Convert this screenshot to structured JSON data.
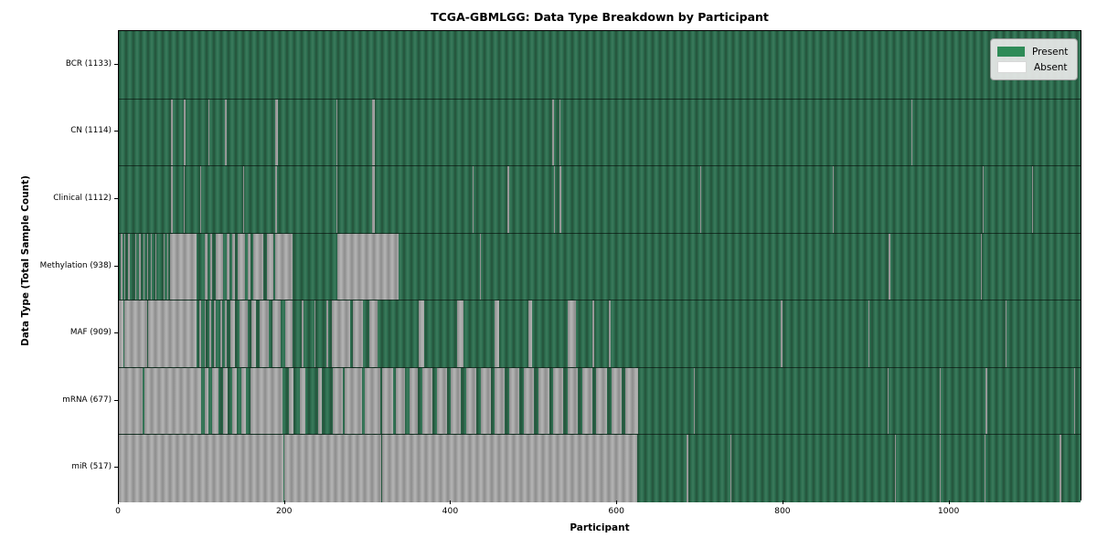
{
  "chart_data": {
    "type": "heatmap",
    "title": "TCGA-GBMLGG: Data Type Breakdown by Participant",
    "xlabel": "Participant",
    "ylabel": "Data Type (Total Sample Count)",
    "x_axis": {
      "min": 0,
      "max": 1160,
      "ticks": [
        0,
        200,
        400,
        600,
        800,
        1000
      ]
    },
    "legend": [
      {
        "label": "Present",
        "color": "#2e8b57"
      },
      {
        "label": "Absent",
        "color": "#ffffff"
      }
    ],
    "colors": {
      "present_base": "#2e7152",
      "present_dark": "#24523a",
      "present_light": "#3c7a5c",
      "absent_base": "#a7a7a7",
      "absent_dark": "#8d8d8d",
      "absent_light": "#b5b5b5"
    },
    "rows": [
      {
        "label": "BCR (1133)",
        "name": "BCR",
        "count": 1133,
        "absent_segments": []
      },
      {
        "label": "CN (1114)",
        "name": "CN",
        "count": 1114,
        "absent_segments": [
          [
            63,
            64.5
          ],
          [
            78,
            80
          ],
          [
            108,
            109
          ],
          [
            128,
            129.5
          ],
          [
            188,
            191
          ],
          [
            262,
            263.5
          ],
          [
            305,
            308
          ],
          [
            522,
            523.5
          ],
          [
            530,
            531.5
          ],
          [
            954,
            955.5
          ]
        ]
      },
      {
        "label": "Clinical (1112)",
        "name": "Clinical",
        "count": 1112,
        "absent_segments": [
          [
            63,
            64.5
          ],
          [
            78,
            79.5
          ],
          [
            98,
            99.5
          ],
          [
            150,
            151
          ],
          [
            188,
            190.5
          ],
          [
            262,
            263.5
          ],
          [
            305,
            308
          ],
          [
            426,
            427.5
          ],
          [
            468,
            469.5
          ],
          [
            524,
            525.5
          ],
          [
            531,
            532.5
          ],
          [
            700,
            701
          ],
          [
            860,
            861
          ],
          [
            1040,
            1041.5
          ],
          [
            1100,
            1101
          ]
        ]
      },
      {
        "label": "Methylation (938)",
        "name": "Methylation",
        "count": 938,
        "absent_segments": [
          [
            2,
            4
          ],
          [
            7,
            8
          ],
          [
            11,
            13
          ],
          [
            16,
            17
          ],
          [
            20,
            21
          ],
          [
            24,
            26
          ],
          [
            30,
            31
          ],
          [
            34,
            35
          ],
          [
            38,
            40
          ],
          [
            44,
            45
          ],
          [
            49,
            50
          ],
          [
            54,
            55
          ],
          [
            58,
            59
          ],
          [
            62,
            94
          ],
          [
            103,
            107
          ],
          [
            110,
            112
          ],
          [
            117,
            126
          ],
          [
            130,
            133
          ],
          [
            137,
            140
          ],
          [
            143,
            152
          ],
          [
            155,
            158
          ],
          [
            162,
            174
          ],
          [
            178,
            186
          ],
          [
            188,
            209
          ],
          [
            263,
            337
          ],
          [
            435,
            436
          ],
          [
            927,
            928.5
          ],
          [
            1038,
            1039
          ]
        ]
      },
      {
        "label": "MAF (909)",
        "name": "MAF",
        "count": 909,
        "absent_segments": [
          [
            0,
            6
          ],
          [
            7,
            34
          ],
          [
            35,
            94
          ],
          [
            97,
            99
          ],
          [
            103,
            105
          ],
          [
            109,
            111
          ],
          [
            115,
            117
          ],
          [
            122,
            124
          ],
          [
            128,
            130
          ],
          [
            134,
            140
          ],
          [
            145,
            155
          ],
          [
            160,
            165
          ],
          [
            170,
            180
          ],
          [
            185,
            195
          ],
          [
            200,
            209
          ],
          [
            220,
            222
          ],
          [
            235,
            237
          ],
          [
            250,
            252
          ],
          [
            256,
            278
          ],
          [
            282,
            294
          ],
          [
            302,
            311
          ],
          [
            361,
            368
          ],
          [
            407,
            415
          ],
          [
            452,
            458
          ],
          [
            493,
            497
          ],
          [
            540,
            550
          ],
          [
            570,
            572
          ],
          [
            590,
            592
          ],
          [
            797,
            798.5
          ],
          [
            902,
            903.5
          ],
          [
            1068,
            1069
          ]
        ]
      },
      {
        "label": "mRNA (677)",
        "name": "mRNA",
        "count": 677,
        "absent_segments": [
          [
            0,
            29
          ],
          [
            31,
            99
          ],
          [
            104,
            108
          ],
          [
            112,
            120
          ],
          [
            126,
            131
          ],
          [
            136,
            142
          ],
          [
            147,
            153
          ],
          [
            158,
            197
          ],
          [
            205,
            210
          ],
          [
            218,
            225
          ],
          [
            240,
            244
          ],
          [
            257,
            270
          ],
          [
            272,
            293
          ],
          [
            296,
            315
          ],
          [
            317,
            330
          ],
          [
            334,
            345
          ],
          [
            350,
            360
          ],
          [
            365,
            378
          ],
          [
            383,
            395
          ],
          [
            400,
            412
          ],
          [
            418,
            430
          ],
          [
            436,
            448
          ],
          [
            452,
            465
          ],
          [
            470,
            482
          ],
          [
            488,
            500
          ],
          [
            505,
            518
          ],
          [
            523,
            535
          ],
          [
            540,
            552
          ],
          [
            558,
            570
          ],
          [
            575,
            588
          ],
          [
            593,
            605
          ],
          [
            610,
            625
          ],
          [
            692,
            693.5
          ],
          [
            926,
            927
          ],
          [
            988,
            989
          ],
          [
            1043,
            1045
          ],
          [
            1150,
            1151
          ]
        ]
      },
      {
        "label": "miR (517)",
        "name": "miR",
        "count": 517,
        "absent_segments": [
          [
            0,
            198
          ],
          [
            199.5,
            316
          ],
          [
            317.5,
            624
          ],
          [
            684,
            685.5
          ],
          [
            736,
            737.5
          ],
          [
            934,
            935
          ],
          [
            988,
            989.5
          ],
          [
            1042,
            1043.5
          ],
          [
            1133,
            1134.5
          ]
        ]
      }
    ]
  }
}
